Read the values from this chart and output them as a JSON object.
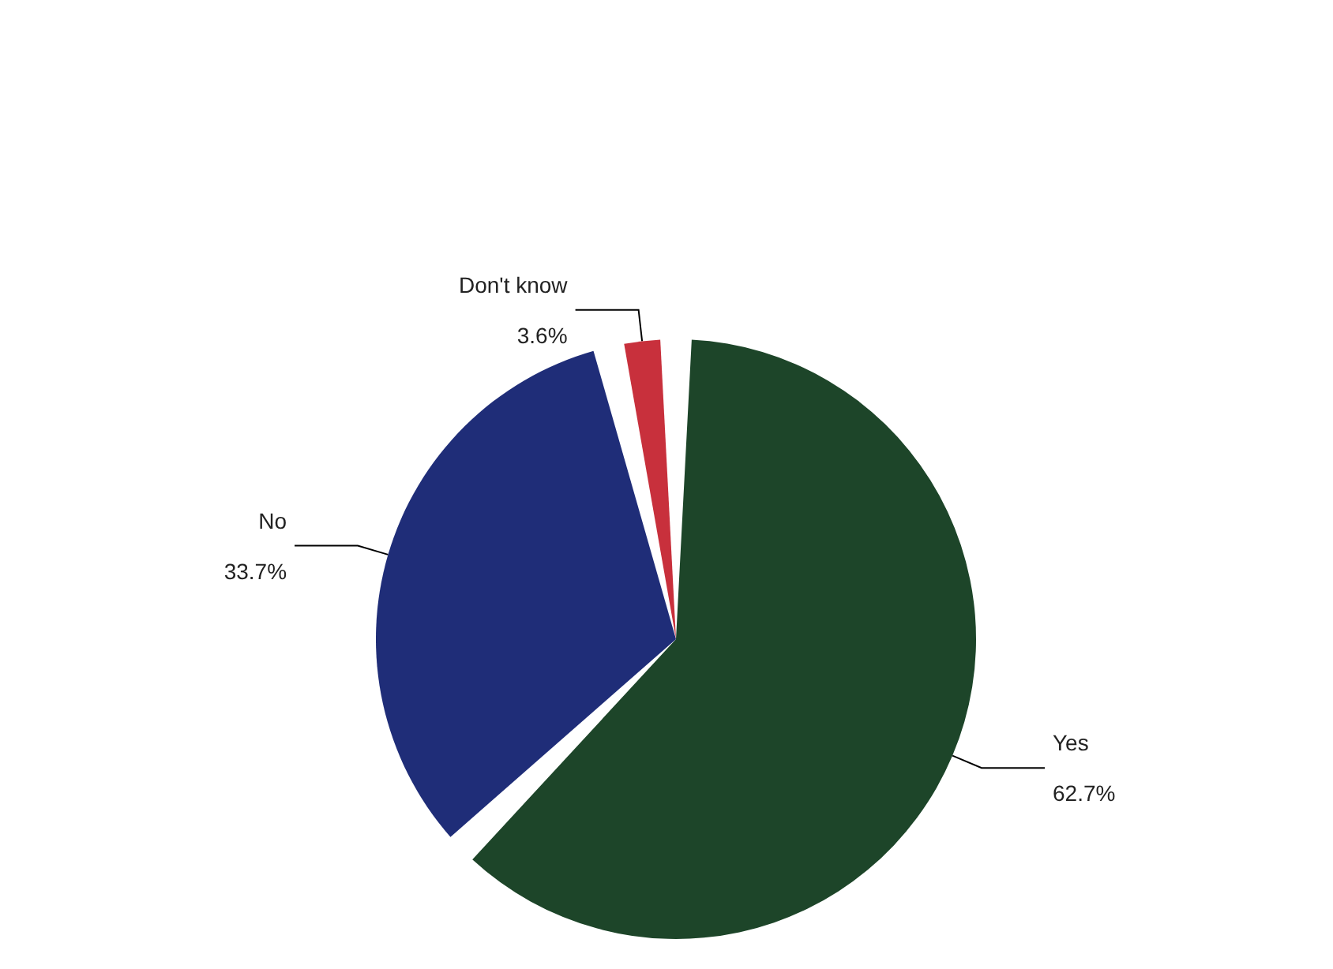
{
  "chart_data": {
    "type": "pie",
    "categories": [
      "Yes",
      "No",
      "Don't know"
    ],
    "values": [
      62.7,
      33.7,
      3.6
    ],
    "value_labels": [
      "62.7%",
      "33.7%",
      "3.6%"
    ],
    "colors": [
      "#1d4529",
      "#1f2d78",
      "#c8303c"
    ],
    "legend": false
  }
}
